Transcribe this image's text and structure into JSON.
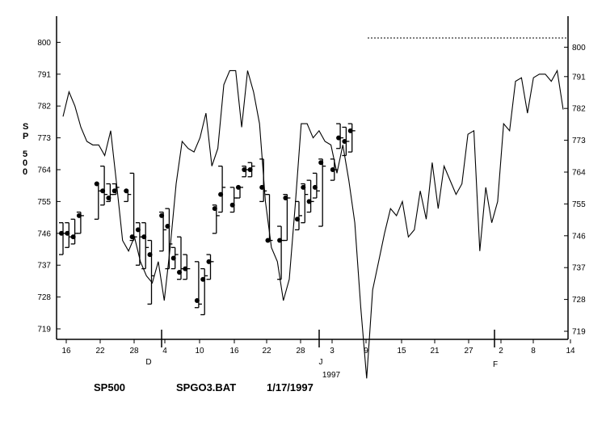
{
  "chart_data": {
    "type": "line",
    "ylabel_chars": [
      "S",
      "P",
      "5",
      "0",
      "0"
    ],
    "ylim": [
      719,
      800
    ],
    "y_ticks_left": [
      "800",
      "791",
      "782",
      "773",
      "764",
      "755",
      "746",
      "737",
      "728",
      "719"
    ],
    "y_ticks_right": [
      "800",
      "791",
      "782",
      "773",
      "764",
      "755",
      "746",
      "737",
      "728",
      "719"
    ],
    "x_tick_labels": [
      "16",
      "22",
      "28",
      "4",
      "10",
      "16",
      "22",
      "28",
      "3",
      "9",
      "15",
      "21",
      "27",
      "2",
      "8",
      "14"
    ],
    "month_labels": [
      "D",
      "J",
      "F"
    ],
    "year_label": "1997",
    "footer": {
      "symbol": "SP500",
      "file": "SPGO3.BAT",
      "date": "1/17/1997"
    },
    "price_line": [
      {
        "x": 0,
        "y": 779
      },
      {
        "x": 1,
        "y": 786
      },
      {
        "x": 2,
        "y": 782
      },
      {
        "x": 3,
        "y": 776
      },
      {
        "x": 4,
        "y": 772
      },
      {
        "x": 5,
        "y": 771
      },
      {
        "x": 6,
        "y": 771
      },
      {
        "x": 7,
        "y": 768
      },
      {
        "x": 8,
        "y": 775
      },
      {
        "x": 9,
        "y": 760
      },
      {
        "x": 10,
        "y": 744
      },
      {
        "x": 11,
        "y": 741
      },
      {
        "x": 12,
        "y": 745
      },
      {
        "x": 13,
        "y": 738
      },
      {
        "x": 14,
        "y": 734
      },
      {
        "x": 15,
        "y": 732
      },
      {
        "x": 16,
        "y": 738
      },
      {
        "x": 17,
        "y": 727
      },
      {
        "x": 18,
        "y": 742
      },
      {
        "x": 19,
        "y": 760
      },
      {
        "x": 20,
        "y": 772
      },
      {
        "x": 21,
        "y": 770
      },
      {
        "x": 22,
        "y": 769
      },
      {
        "x": 23,
        "y": 773
      },
      {
        "x": 24,
        "y": 780
      },
      {
        "x": 25,
        "y": 765
      },
      {
        "x": 26,
        "y": 770
      },
      {
        "x": 27,
        "y": 788
      },
      {
        "x": 28,
        "y": 792
      },
      {
        "x": 29,
        "y": 792
      },
      {
        "x": 30,
        "y": 776
      },
      {
        "x": 31,
        "y": 792
      },
      {
        "x": 32,
        "y": 786
      },
      {
        "x": 33,
        "y": 777
      },
      {
        "x": 34,
        "y": 755
      },
      {
        "x": 35,
        "y": 742
      },
      {
        "x": 36,
        "y": 738
      },
      {
        "x": 37,
        "y": 727
      },
      {
        "x": 38,
        "y": 733
      },
      {
        "x": 39,
        "y": 754
      },
      {
        "x": 40,
        "y": 777
      },
      {
        "x": 41,
        "y": 777
      },
      {
        "x": 42,
        "y": 773
      },
      {
        "x": 43,
        "y": 775
      },
      {
        "x": 44,
        "y": 772
      },
      {
        "x": 45,
        "y": 771
      },
      {
        "x": 46,
        "y": 763
      },
      {
        "x": 47,
        "y": 771
      },
      {
        "x": 48,
        "y": 761
      },
      {
        "x": 49,
        "y": 749
      },
      {
        "x": 50,
        "y": 725
      },
      {
        "x": 51,
        "y": 705
      },
      {
        "x": 52,
        "y": 730
      },
      {
        "x": 53,
        "y": 738
      },
      {
        "x": 54,
        "y": 746
      },
      {
        "x": 55,
        "y": 753
      },
      {
        "x": 56,
        "y": 751
      },
      {
        "x": 57,
        "y": 755
      },
      {
        "x": 58,
        "y": 745
      },
      {
        "x": 59,
        "y": 747
      },
      {
        "x": 60,
        "y": 758
      },
      {
        "x": 61,
        "y": 750
      },
      {
        "x": 62,
        "y": 766
      },
      {
        "x": 63,
        "y": 753
      },
      {
        "x": 64,
        "y": 765
      },
      {
        "x": 65,
        "y": 761
      },
      {
        "x": 66,
        "y": 757
      },
      {
        "x": 67,
        "y": 760
      },
      {
        "x": 68,
        "y": 774
      },
      {
        "x": 69,
        "y": 775
      },
      {
        "x": 70,
        "y": 741
      },
      {
        "x": 71,
        "y": 759
      },
      {
        "x": 72,
        "y": 749
      },
      {
        "x": 73,
        "y": 755
      },
      {
        "x": 74,
        "y": 777
      },
      {
        "x": 75,
        "y": 775
      },
      {
        "x": 76,
        "y": 789
      },
      {
        "x": 77,
        "y": 790
      },
      {
        "x": 78,
        "y": 780
      },
      {
        "x": 79,
        "y": 790
      },
      {
        "x": 80,
        "y": 791
      },
      {
        "x": 81,
        "y": 791
      },
      {
        "x": 82,
        "y": 789
      },
      {
        "x": 83,
        "y": 792
      },
      {
        "x": 84,
        "y": 781
      }
    ],
    "hlc_bars": [
      {
        "x": 0,
        "high": 749,
        "low": 740,
        "close": 746,
        "dot": 746
      },
      {
        "x": 1,
        "high": 749,
        "low": 742,
        "close": 745,
        "dot": 746
      },
      {
        "x": 2,
        "high": 750,
        "low": 743,
        "close": 746,
        "dot": 745
      },
      {
        "x": 3,
        "high": 752,
        "low": 746,
        "close": 751,
        "dot": 751
      },
      {
        "x": 6,
        "high": 760,
        "low": 750,
        "close": 758,
        "dot": 760
      },
      {
        "x": 7,
        "high": 765,
        "low": 754,
        "close": 757,
        "dot": 758
      },
      {
        "x": 8,
        "high": 760,
        "low": 755,
        "close": 757,
        "dot": 756
      },
      {
        "x": 9,
        "high": 760,
        "low": 757,
        "close": 759,
        "dot": 758
      },
      {
        "x": 11,
        "high": 758,
        "low": 755,
        "close": 757,
        "dot": 758
      },
      {
        "x": 12,
        "high": 763,
        "low": 744,
        "close": 745,
        "dot": 745
      },
      {
        "x": 13,
        "high": 749,
        "low": 737,
        "close": 745,
        "dot": 747
      },
      {
        "x": 14,
        "high": 749,
        "low": 736,
        "close": 742,
        "dot": 745
      },
      {
        "x": 15,
        "high": 744,
        "low": 726,
        "close": 734,
        "dot": 740
      },
      {
        "x": 17,
        "high": 752,
        "low": 741,
        "close": 747,
        "dot": 751
      },
      {
        "x": 18,
        "high": 753,
        "low": 736,
        "close": 743,
        "dot": 748
      },
      {
        "x": 19,
        "high": 742,
        "low": 736,
        "close": 740,
        "dot": 739
      },
      {
        "x": 20,
        "high": 745,
        "low": 733,
        "close": 736,
        "dot": 735
      },
      {
        "x": 21,
        "high": 740,
        "low": 733,
        "close": 736,
        "dot": 736
      },
      {
        "x": 23,
        "high": 738,
        "low": 725,
        "close": 726,
        "dot": 727
      },
      {
        "x": 24,
        "high": 736,
        "low": 723,
        "close": 734,
        "dot": 733
      },
      {
        "x": 25,
        "high": 740,
        "low": 733,
        "close": 738,
        "dot": 738
      },
      {
        "x": 26,
        "high": 754,
        "low": 746,
        "close": 751,
        "dot": 753
      },
      {
        "x": 27,
        "high": 765,
        "low": 752,
        "close": 759,
        "dot": 757
      },
      {
        "x": 29,
        "high": 759,
        "low": 752,
        "close": 756,
        "dot": 754
      },
      {
        "x": 30,
        "high": 759,
        "low": 756,
        "close": 759,
        "dot": 759
      },
      {
        "x": 31,
        "high": 765,
        "low": 762,
        "close": 764,
        "dot": 764
      },
      {
        "x": 32,
        "high": 766,
        "low": 762,
        "close": 765,
        "dot": 764
      },
      {
        "x": 34,
        "high": 767,
        "low": 755,
        "close": 758,
        "dot": 759
      },
      {
        "x": 35,
        "high": 757,
        "low": 744,
        "close": 744,
        "dot": 744
      },
      {
        "x": 37,
        "high": 748,
        "low": 733,
        "close": 744,
        "dot": 744
      },
      {
        "x": 38,
        "high": 757,
        "low": 744,
        "close": 756,
        "dot": 756
      },
      {
        "x": 40,
        "high": 755,
        "low": 747,
        "close": 751,
        "dot": 750
      },
      {
        "x": 41,
        "high": 760,
        "low": 749,
        "close": 757,
        "dot": 759
      },
      {
        "x": 42,
        "high": 761,
        "low": 752,
        "close": 755,
        "dot": 755
      },
      {
        "x": 43,
        "high": 763,
        "low": 756,
        "close": 758,
        "dot": 759
      },
      {
        "x": 44,
        "high": 767,
        "low": 748,
        "close": 765,
        "dot": 766
      },
      {
        "x": 46,
        "high": 767,
        "low": 761,
        "close": 764,
        "dot": 764
      },
      {
        "x": 47,
        "high": 777,
        "low": 770,
        "close": 773,
        "dot": 773
      },
      {
        "x": 48,
        "high": 776,
        "low": 768,
        "close": 772,
        "dot": 772
      },
      {
        "x": 49,
        "high": 777,
        "low": 769,
        "close": 775,
        "dot": 775
      }
    ]
  }
}
